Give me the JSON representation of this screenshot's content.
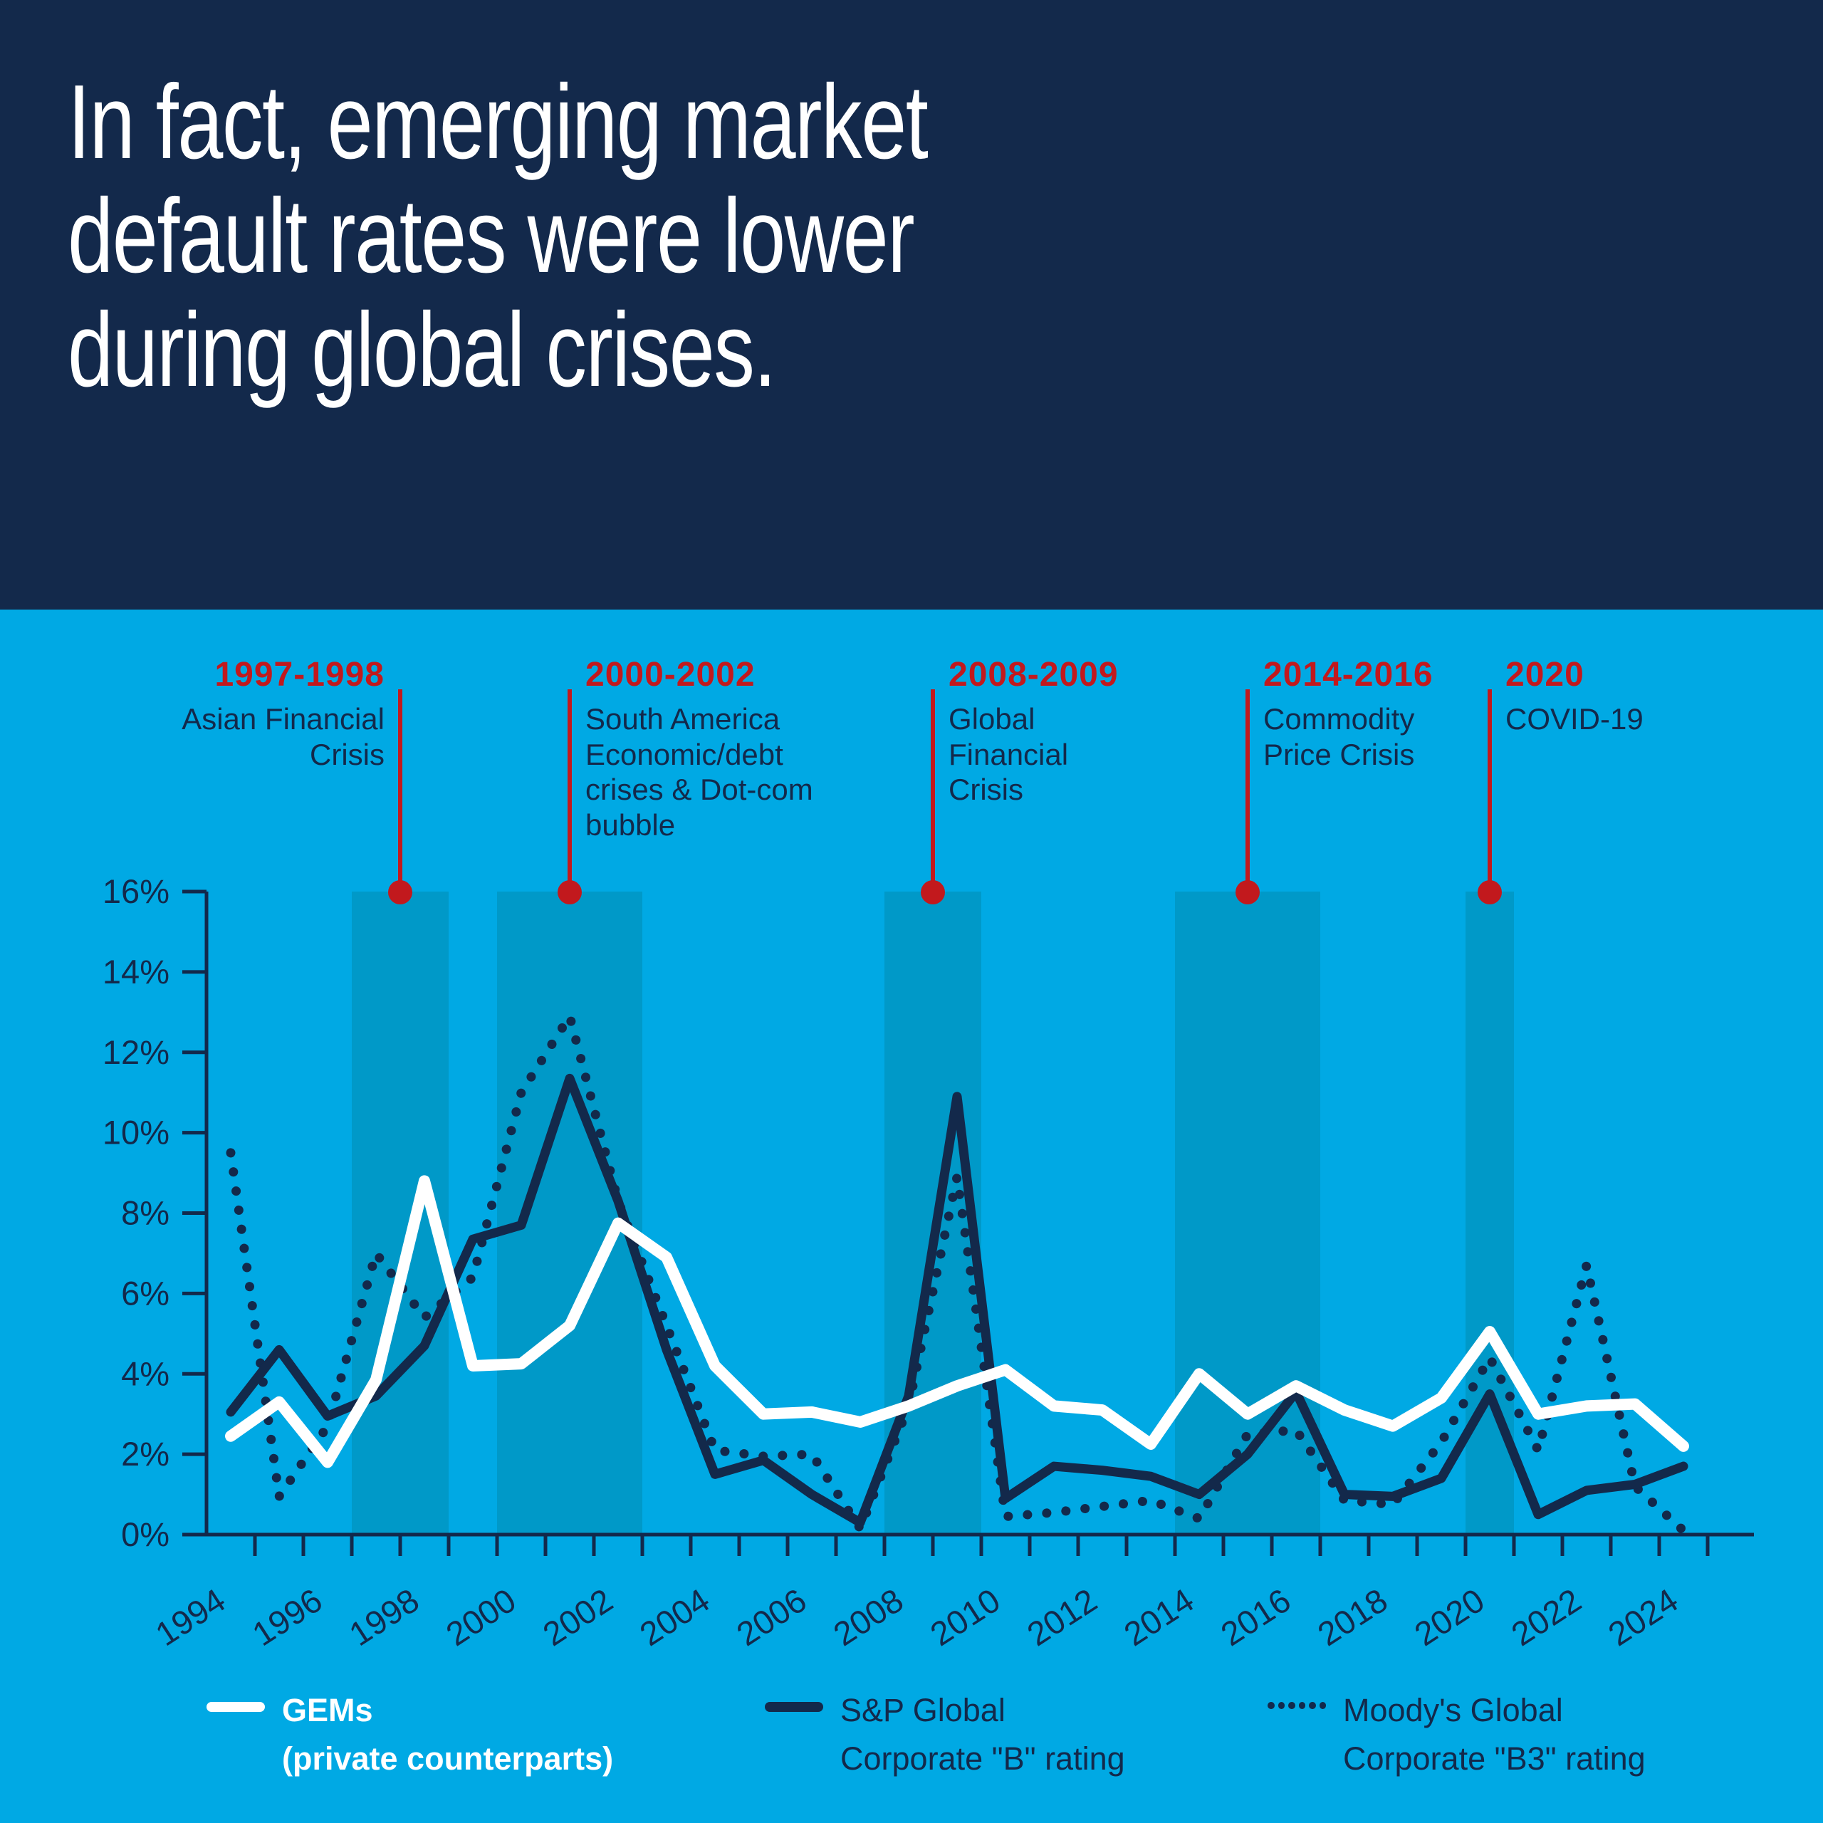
{
  "colors": {
    "navy": "#13294B",
    "background": "#00A9E4",
    "band": "#0099C8",
    "red": "#C2191D",
    "white": "#FFFFFF"
  },
  "header": {
    "title": "In fact, emerging market\ndefault rates were lower\nduring global crises."
  },
  "crises": [
    {
      "dates": "1997-1998",
      "label": "Asian Financial\nCrisis",
      "start_year": 1997,
      "end_year": 1999
    },
    {
      "dates": "2000-2002",
      "label": "South America\nEconomic/debt\ncrises & Dot-com\nbubble",
      "start_year": 2000,
      "end_year": 2003
    },
    {
      "dates": "2008-2009",
      "label": "Global\nFinancial\nCrisis",
      "start_year": 2008,
      "end_year": 2010
    },
    {
      "dates": "2014-2016",
      "label": "Commodity\nPrice Crisis",
      "start_year": 2014,
      "end_year": 2017
    },
    {
      "dates": "2020",
      "label": "COVID-19",
      "start_year": 2020,
      "end_year": 2021
    }
  ],
  "chart_data": {
    "type": "line",
    "title": "Emerging market default rates vs global crises",
    "xlabel": "",
    "ylabel": "",
    "ylim": [
      0,
      16
    ],
    "ytick_step": 2,
    "ytick_suffix": "%",
    "labeled_x_step": 2,
    "grid": false,
    "legend_position": "bottom",
    "x": [
      1994,
      1995,
      1996,
      1997,
      1998,
      1999,
      2000,
      2001,
      2002,
      2003,
      2004,
      2005,
      2006,
      2007,
      2008,
      2009,
      2010,
      2011,
      2012,
      2013,
      2014,
      2015,
      2016,
      2017,
      2018,
      2019,
      2020,
      2021,
      2022,
      2023,
      2024
    ],
    "series": [
      {
        "id": "gems",
        "name": "GEMs (private counterparts)",
        "style": "solid-white",
        "values": [
          2.45,
          3.3,
          1.8,
          3.85,
          8.8,
          4.2,
          4.25,
          5.2,
          7.75,
          6.9,
          4.2,
          3.0,
          3.05,
          2.8,
          3.2,
          3.7,
          4.1,
          3.2,
          3.1,
          2.25,
          4.0,
          3.0,
          3.7,
          3.1,
          2.7,
          3.4,
          5.05,
          3.0,
          3.2,
          3.25,
          2.2
        ]
      },
      {
        "id": "sp",
        "name": "S&P Global Corporate \"B\" rating",
        "style": "solid-navy",
        "values": [
          3.05,
          4.6,
          2.95,
          3.45,
          4.7,
          7.35,
          7.7,
          11.35,
          8.3,
          4.6,
          1.5,
          1.85,
          1.0,
          0.3,
          3.45,
          10.9,
          0.9,
          1.7,
          1.6,
          1.45,
          1.0,
          2.0,
          3.55,
          1.0,
          0.95,
          1.4,
          3.5,
          0.5,
          1.1,
          1.25,
          1.7
        ]
      },
      {
        "id": "moodys",
        "name": "Moody's Global Corporate \"B3\" rating",
        "style": "dotted-navy",
        "values": [
          9.5,
          0.95,
          2.7,
          7.0,
          5.4,
          6.4,
          11.0,
          12.9,
          8.3,
          5.2,
          2.1,
          1.95,
          2.0,
          0.15,
          3.2,
          8.9,
          0.45,
          0.55,
          0.7,
          0.85,
          0.4,
          2.5,
          2.6,
          0.85,
          0.75,
          2.3,
          4.4,
          2.1,
          6.7,
          1.2,
          0.1
        ]
      }
    ]
  },
  "legend": [
    {
      "line1": "GEMs",
      "line2": "(private counterparts)"
    },
    {
      "line1": "S&P Global",
      "line2": "Corporate \"B\" rating"
    },
    {
      "line1": "Moody's Global",
      "line2": "Corporate \"B3\" rating"
    }
  ]
}
